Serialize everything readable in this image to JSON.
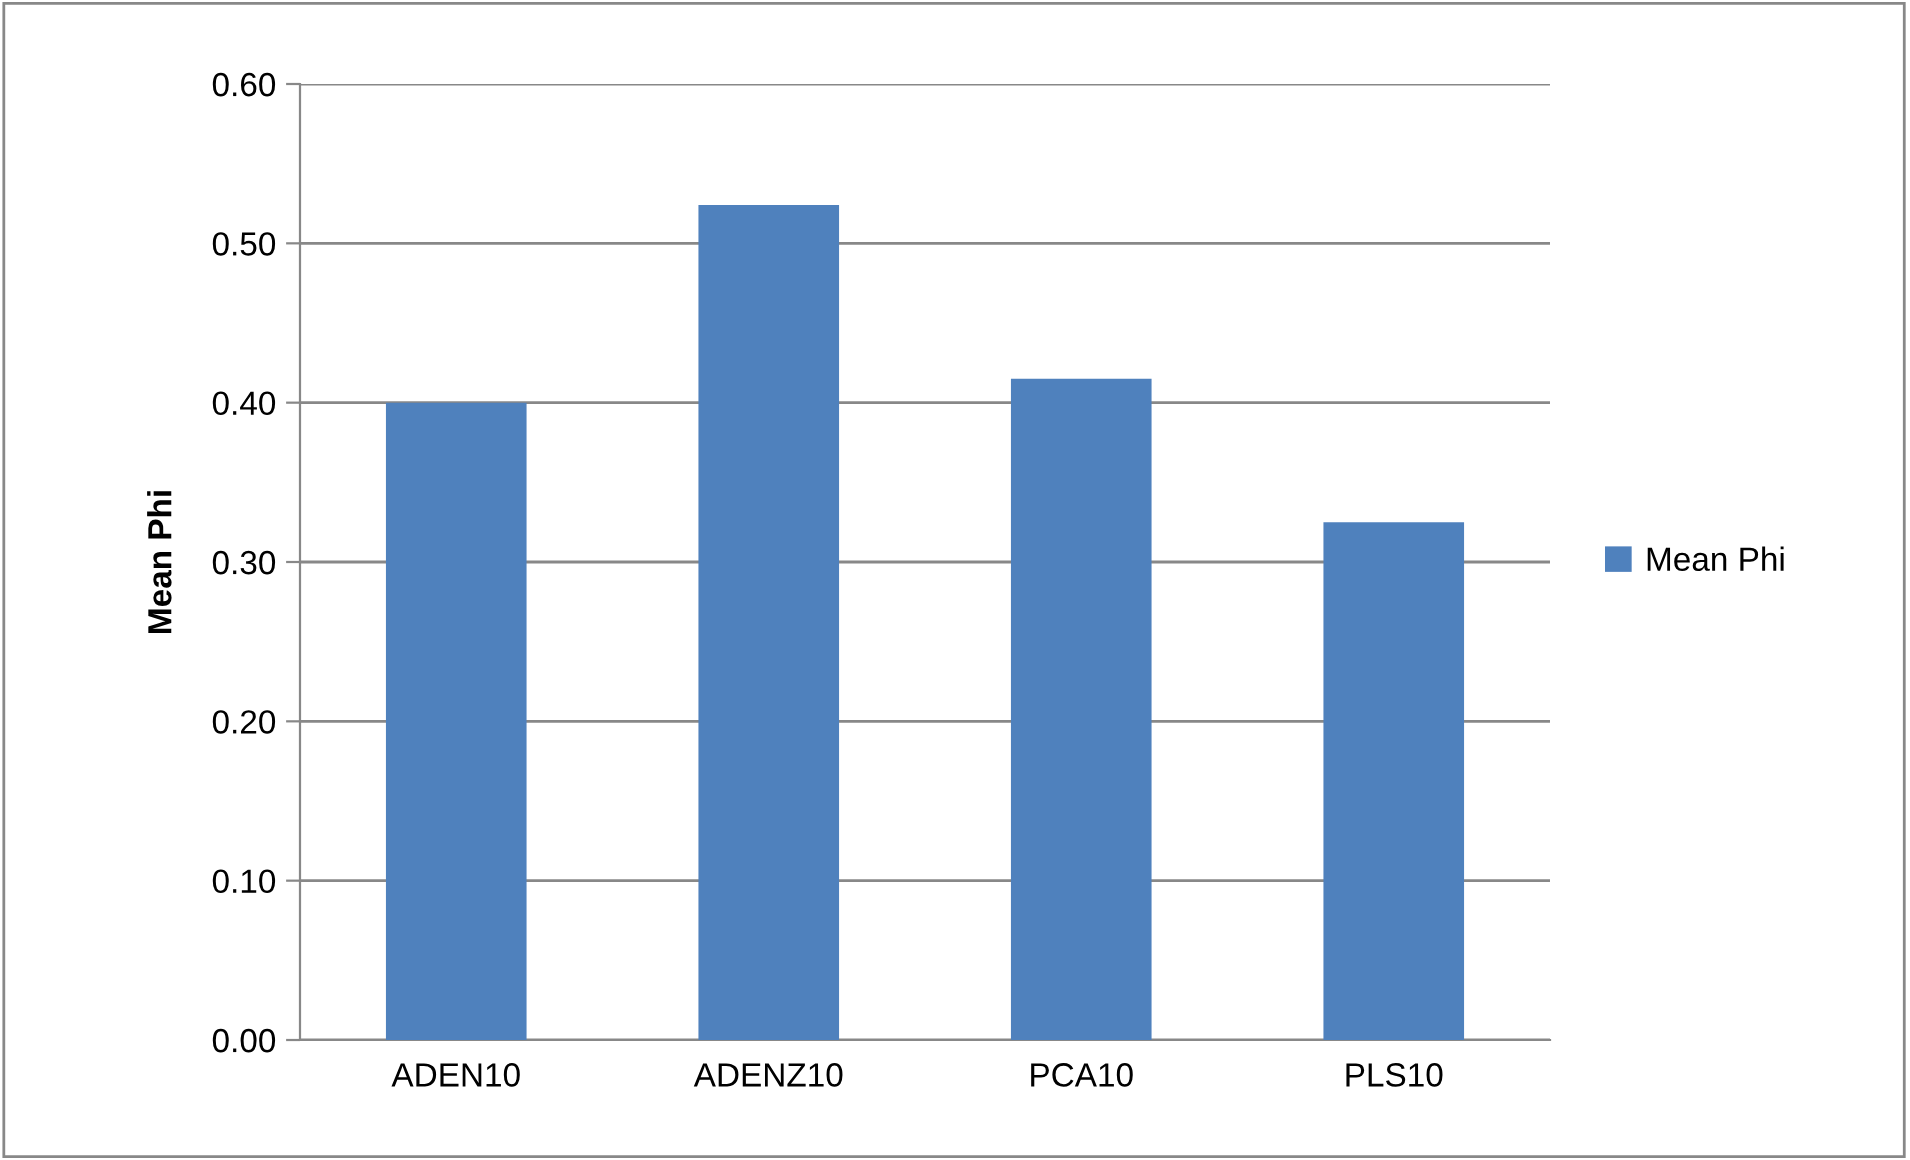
{
  "chart_data": {
    "type": "bar",
    "ylabel": "Mean Phi",
    "categories": [
      "ADEN10",
      "ADENZ10",
      "PCA10",
      "PLS10"
    ],
    "series": [
      {
        "name": "Mean Phi",
        "color": "#4f81bd",
        "values": [
          0.4,
          0.524,
          0.415,
          0.325
        ]
      }
    ],
    "ylim": [
      0,
      0.6
    ],
    "yticks": [
      {
        "value": 0,
        "label": "0.00"
      },
      {
        "value": 0.1,
        "label": "0.10"
      },
      {
        "value": 0.2,
        "label": "0.20"
      },
      {
        "value": 0.3,
        "label": "0.30"
      },
      {
        "value": 0.4,
        "label": "0.40"
      },
      {
        "value": 0.5,
        "label": "0.50"
      },
      {
        "value": 0.6,
        "label": "0.60"
      }
    ],
    "grid": "y",
    "legend": "right"
  }
}
